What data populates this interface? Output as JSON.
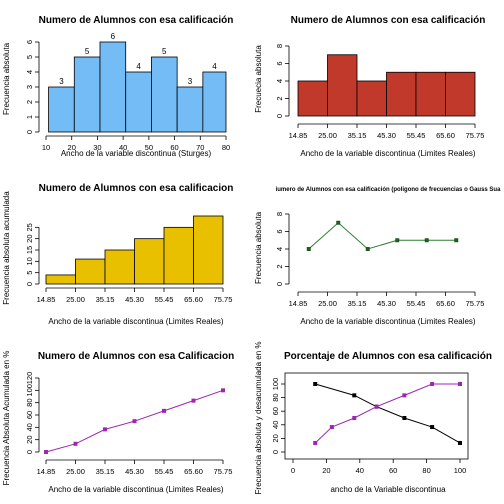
{
  "chart_data": [
    {
      "id": "p1",
      "type": "bar",
      "title": "Numero de Alumnos con esa calificación",
      "xlabel": "Ancho de la variable discontinua (Sturges)",
      "ylabel": "Frecuencia absoluta",
      "x_ticks": [
        "10",
        "20",
        "30",
        "40",
        "50",
        "60",
        "70",
        "80"
      ],
      "y_ticks": [
        "0",
        "1",
        "2",
        "3",
        "4",
        "5",
        "6"
      ],
      "xlim": [
        10,
        80
      ],
      "ylim": [
        0,
        6
      ],
      "bins": [
        [
          15,
          25
        ],
        [
          25,
          35
        ],
        [
          35,
          45
        ],
        [
          45,
          55
        ],
        [
          55,
          65
        ],
        [
          65,
          75
        ],
        [
          75,
          85
        ]
      ],
      "bins_note": "",
      "x": [
        15,
        25,
        35,
        45,
        55,
        65,
        75
      ],
      "values": [
        3,
        5,
        6,
        4,
        5,
        3,
        4
      ],
      "data_labels": [
        "3",
        "5",
        "6",
        "4",
        "5",
        "3",
        "4"
      ],
      "colors": {
        "fill": "#74bcf5"
      }
    },
    {
      "id": "p2",
      "type": "bar",
      "title": "Numero de Alumnos con esa calificación",
      "xlabel": "Ancho de la variable discontinua (Limites Reales)",
      "ylabel": "Frecuecia absoluta",
      "x_ticks": [
        "14.85",
        "25.00",
        "35.15",
        "45.30",
        "55.45",
        "65.60",
        "75.75"
      ],
      "y_ticks": [
        "0",
        "2",
        "4",
        "6",
        "8"
      ],
      "ylim": [
        0,
        8
      ],
      "values": [
        4,
        7,
        4,
        5,
        5,
        5
      ],
      "colors": {
        "fill": "#c0392b"
      }
    },
    {
      "id": "p3",
      "type": "bar",
      "title": "Numero de Alumnos con esa calificacion",
      "xlabel": "Ancho de la variable discontinua (Limites Reales)",
      "ylabel": "Frecuencia absoluta acumulada",
      "x_ticks": [
        "14.85",
        "25.00",
        "35.15",
        "45.30",
        "55.45",
        "65.60",
        "75.75"
      ],
      "y_ticks": [
        "0",
        "5",
        "10",
        "15",
        "20",
        "25"
      ],
      "ylim": [
        0,
        30
      ],
      "values": [
        4,
        11,
        15,
        20,
        25,
        30
      ],
      "colors": {
        "fill": "#e8c000"
      }
    },
    {
      "id": "p4",
      "type": "line",
      "title": "iumero de Alumnos con esa calificación (poligono de frecuencias o Gauss Sua",
      "xlabel": "Ancho de la variable discontinua (Limites Reales)",
      "ylabel": "Frecuencia absoluta",
      "x_ticks": [
        "14.85",
        "25.00",
        "35.15",
        "45.30",
        "55.45",
        "65.60",
        "75.75"
      ],
      "y_ticks": [
        "0",
        "2",
        "4",
        "6",
        "8"
      ],
      "ylim": [
        0,
        8
      ],
      "x": [
        19.925,
        30.075,
        40.225,
        50.375,
        60.525,
        70.675
      ],
      "values": [
        4,
        7,
        4,
        5,
        5,
        5
      ],
      "colors": {
        "line": "#2e7d32",
        "point": "#1b5e20"
      }
    },
    {
      "id": "p5",
      "type": "line",
      "title": "Numero de Alumnos con esa Calificacion",
      "xlabel": "Ancho de la variable discontinua (Limites Reales)",
      "ylabel": "Frecuencia Absoluta Acumulada en %",
      "x_ticks": [
        "14.85",
        "25.00",
        "35.15",
        "45.30",
        "55.45",
        "65.60",
        "75.75"
      ],
      "y_ticks": [
        "0",
        "20",
        "40",
        "60",
        "80",
        "100",
        "120"
      ],
      "ylim": [
        0,
        120
      ],
      "x": [
        14.85,
        25.0,
        35.15,
        45.3,
        55.45,
        65.6,
        75.75
      ],
      "values": [
        0,
        13.3,
        36.7,
        50,
        66.7,
        83.3,
        100
      ],
      "colors": {
        "line": "#9c27b0",
        "point": "#9c27b0"
      }
    },
    {
      "id": "p6",
      "type": "line",
      "title": "Porcentaje de Alumnos con esa calificación",
      "xlabel": "ancho de la Variable discontinua",
      "ylabel": "Frecuencia absoluta y desacumulada en %",
      "x_ticks": [
        "0",
        "20",
        "40",
        "60",
        "80",
        "100"
      ],
      "y_ticks": [
        "0",
        "20",
        "40",
        "60",
        "80",
        "100"
      ],
      "xlim": [
        0,
        100
      ],
      "ylim": [
        0,
        100
      ],
      "series": [
        {
          "x": [
            13.3,
            36.7,
            50,
            66.7,
            83.3,
            100
          ],
          "values": [
            100,
            83.3,
            66.7,
            50,
            36.7,
            13.3
          ],
          "color": "#000000"
        },
        {
          "x": [
            13.3,
            23.3,
            36.7,
            50,
            66.7,
            83.3,
            100
          ],
          "values": [
            13.3,
            36.7,
            50,
            66.7,
            83.3,
            100,
            100
          ],
          "color": "#9c27b0"
        }
      ]
    }
  ]
}
